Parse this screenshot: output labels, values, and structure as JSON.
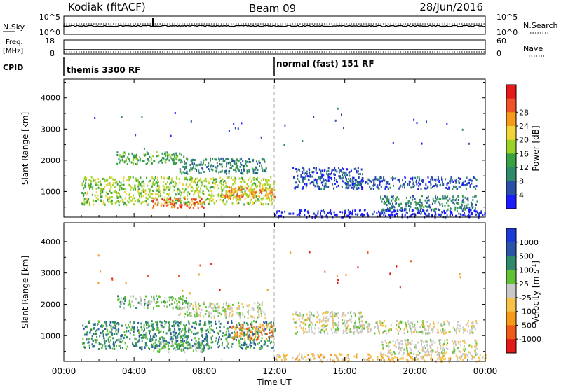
{
  "header": {
    "station": "Kodiak (fitACF)",
    "beam": "Beam 09",
    "date": "28/Jun/2016"
  },
  "noise_panel": {
    "left_label": "N.Sky",
    "right_label": "N.Search",
    "left_ticks": [
      "10^5",
      "10^0"
    ],
    "right_ticks": [
      "10^5",
      "10^0"
    ]
  },
  "freq_panel": {
    "left_label_1": "Freq.",
    "left_label_2": "[MHz]",
    "left_ticks": [
      "18",
      "8"
    ],
    "right_label": "Nave",
    "right_ticks": [
      "60",
      "0"
    ]
  },
  "cpid": {
    "label": "CPID",
    "segments": [
      {
        "text": "themis 3300 RF",
        "start_hour": 0
      },
      {
        "text": "normal (fast) 151 RF",
        "start_hour": 12
      }
    ]
  },
  "colors": {
    "power": [
      "#1b1bff",
      "#2a4fa6",
      "#2f8a6c",
      "#3aa142",
      "#9bd22a",
      "#f1d43a",
      "#f59a1b",
      "#f0522a",
      "#e61a1a"
    ],
    "velocity": [
      "#e21a1a",
      "#ef5a1a",
      "#f59a1b",
      "#f7c24a",
      "#c8c8c8",
      "#62c236",
      "#2f8a6c",
      "#2b56a8",
      "#1b3bd6"
    ]
  },
  "chart_data": [
    {
      "type": "heatmap",
      "name": "power",
      "xlabel": "Time UT",
      "ylabel": "Slant Range [km]",
      "x_ticks": [
        "00:00",
        "04:00",
        "08:00",
        "12:00",
        "16:00",
        "20:00",
        "00:00"
      ],
      "xlim_hours": [
        0,
        24
      ],
      "y_ticks": [
        1000,
        2000,
        3000,
        4000
      ],
      "ylim": [
        180,
        4600
      ],
      "colorbar_label": "Power [dB]",
      "colorbar_ticks": [
        "4",
        "8",
        "12",
        "16",
        "20",
        "24",
        "28"
      ],
      "grid": false,
      "regions": [
        {
          "t0": 1.0,
          "t1": 12.0,
          "r0": 600,
          "r1": 1500,
          "level": 4
        },
        {
          "t0": 3.0,
          "t1": 7.0,
          "r0": 1900,
          "r1": 2300,
          "level": 3
        },
        {
          "t0": 6.5,
          "t1": 11.5,
          "r0": 1600,
          "r1": 2100,
          "level": 2
        },
        {
          "t0": 9.0,
          "t1": 12.0,
          "r0": 800,
          "r1": 1200,
          "level": 6
        },
        {
          "t0": 5.0,
          "t1": 8.0,
          "r0": 500,
          "r1": 800,
          "level": 7
        },
        {
          "t0": 13.0,
          "t1": 17.0,
          "r0": 1100,
          "r1": 1800,
          "level": 1
        },
        {
          "t0": 16.0,
          "t1": 23.5,
          "r0": 1100,
          "r1": 1500,
          "level": 1
        },
        {
          "t0": 18.0,
          "t1": 23.5,
          "r0": 400,
          "r1": 900,
          "level": 2
        },
        {
          "t0": 12.0,
          "t1": 24.0,
          "r0": 200,
          "r1": 450,
          "level": 0
        }
      ]
    },
    {
      "type": "heatmap",
      "name": "velocity",
      "xlabel": "Time UT",
      "ylabel": "Slant Range [km]",
      "x_ticks": [
        "00:00",
        "04:00",
        "08:00",
        "12:00",
        "16:00",
        "20:00",
        "00:00"
      ],
      "xlim_hours": [
        0,
        24
      ],
      "y_ticks": [
        1000,
        2000,
        3000,
        4000
      ],
      "ylim": [
        180,
        4600
      ],
      "colorbar_label": "Velocity [m s^-1]",
      "colorbar_ticks": [
        "1000",
        "500",
        "100",
        "25",
        "-25",
        "-100",
        "-500",
        "-1000"
      ],
      "grid": false,
      "regions": [
        {
          "t0": 1.0,
          "t1": 12.0,
          "r0": 600,
          "r1": 1500,
          "level": 6
        },
        {
          "t0": 3.0,
          "t1": 7.0,
          "r0": 1900,
          "r1": 2300,
          "level": 5
        },
        {
          "t0": 6.5,
          "t1": 11.5,
          "r0": 1600,
          "r1": 2100,
          "level": 4
        },
        {
          "t0": 9.5,
          "t1": 12.0,
          "r0": 900,
          "r1": 1400,
          "level": 2
        },
        {
          "t0": 5.0,
          "t1": 8.0,
          "r0": 500,
          "r1": 800,
          "level": 5
        },
        {
          "t0": 13.0,
          "t1": 17.0,
          "r0": 1100,
          "r1": 1800,
          "level": 4
        },
        {
          "t0": 16.0,
          "t1": 23.5,
          "r0": 1100,
          "r1": 1500,
          "level": 4
        },
        {
          "t0": 18.0,
          "t1": 23.5,
          "r0": 400,
          "r1": 900,
          "level": 4
        },
        {
          "t0": 12.0,
          "t1": 24.0,
          "r0": 200,
          "r1": 450,
          "level": 3
        }
      ]
    }
  ]
}
